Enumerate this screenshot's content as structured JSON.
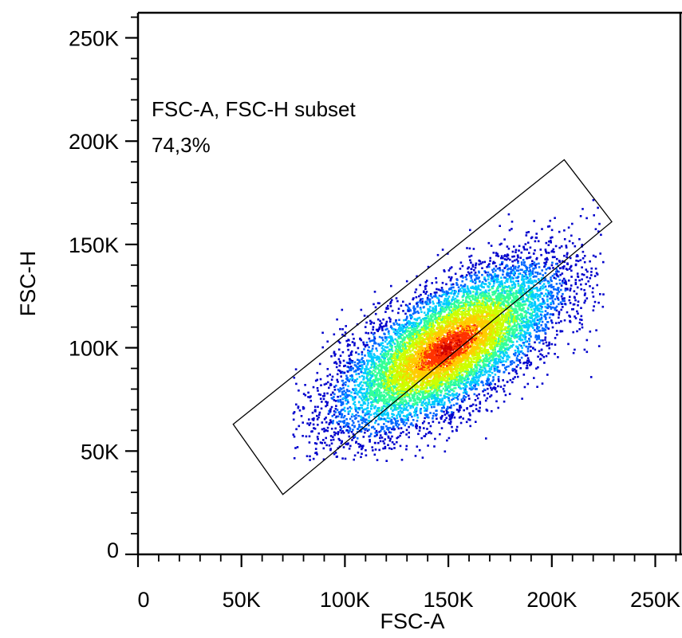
{
  "chart_data": {
    "type": "scatter",
    "subtype": "density-dot-plot",
    "xlabel": "FSC-A",
    "ylabel": "FSC-H",
    "xlim": [
      0,
      262144
    ],
    "ylim": [
      0,
      262144
    ],
    "x_ticks": [
      {
        "value": 0,
        "label": "0"
      },
      {
        "value": 50000,
        "label": "50K"
      },
      {
        "value": 100000,
        "label": "100K"
      },
      {
        "value": 150000,
        "label": "150K"
      },
      {
        "value": 200000,
        "label": "200K"
      },
      {
        "value": 250000,
        "label": "250K"
      }
    ],
    "y_ticks": [
      {
        "value": 0,
        "label": "0"
      },
      {
        "value": 50000,
        "label": "50K"
      },
      {
        "value": 100000,
        "label": "100K"
      },
      {
        "value": 150000,
        "label": "150K"
      },
      {
        "value": 200000,
        "label": "200K"
      },
      {
        "value": 250000,
        "label": "250K"
      }
    ],
    "grid": false,
    "colormap": [
      "#0000cc",
      "#0066ff",
      "#00ccff",
      "#33ff99",
      "#ccff00",
      "#ffcc00",
      "#ff3300",
      "#cc0000"
    ],
    "population": {
      "center_x": 150000,
      "center_y": 100000,
      "major_axis_angle_deg": 33,
      "x_range": [
        75000,
        225000
      ],
      "y_range": [
        45000,
        185000
      ]
    },
    "gate": {
      "name": "FSC-A, FSC-H subset",
      "percent": "74,3%",
      "shape": "polygon",
      "vertices": [
        [
          46000,
          63000
        ],
        [
          206000,
          191000
        ],
        [
          229000,
          161000
        ],
        [
          70000,
          29000
        ]
      ]
    }
  }
}
